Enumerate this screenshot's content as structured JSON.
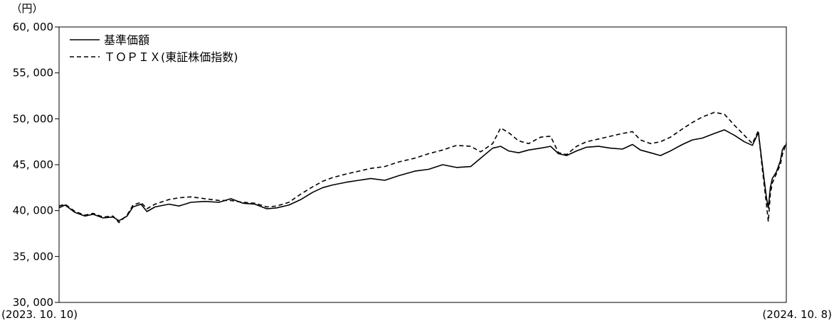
{
  "chart_data": {
    "type": "line",
    "unit_label": "（円）",
    "ylim": [
      30000,
      60000
    ],
    "y_ticks": [
      60000,
      55000,
      50000,
      45000,
      40000,
      35000,
      30000
    ],
    "y_tick_labels": [
      "60, 000",
      "55, 000",
      "50, 000",
      "45, 000",
      "40, 000",
      "35, 000",
      "30, 000"
    ],
    "x_start_label": "(2023. 10. 10)",
    "x_end_label": "(2024. 10. 8)",
    "x_range": [
      "2023-10-10",
      "2024-10-08"
    ],
    "grid": false,
    "legend_position": "top-left",
    "series": [
      {
        "name": "基準価額",
        "style": "solid",
        "color": "#000000",
        "points": [
          [
            "2023-10-10",
            40300
          ],
          [
            "2023-10-13",
            40600
          ],
          [
            "2023-10-18",
            39800
          ],
          [
            "2023-10-23",
            39400
          ],
          [
            "2023-10-27",
            39600
          ],
          [
            "2023-11-01",
            39200
          ],
          [
            "2023-11-06",
            39300
          ],
          [
            "2023-11-09",
            38900
          ],
          [
            "2023-11-13",
            39400
          ],
          [
            "2023-11-16",
            40400
          ],
          [
            "2023-11-20",
            40700
          ],
          [
            "2023-11-23",
            39900
          ],
          [
            "2023-11-27",
            40400
          ],
          [
            "2023-12-04",
            40700
          ],
          [
            "2023-12-09",
            40500
          ],
          [
            "2023-12-15",
            40900
          ],
          [
            "2023-12-22",
            41000
          ],
          [
            "2023-12-29",
            40900
          ],
          [
            "2024-01-04",
            41300
          ],
          [
            "2024-01-10",
            40800
          ],
          [
            "2024-01-16",
            40700
          ],
          [
            "2024-01-22",
            40200
          ],
          [
            "2024-01-27",
            40300
          ],
          [
            "2024-02-02",
            40600
          ],
          [
            "2024-02-08",
            41200
          ],
          [
            "2024-02-14",
            42000
          ],
          [
            "2024-02-19",
            42500
          ],
          [
            "2024-02-24",
            42800
          ],
          [
            "2024-03-02",
            43100
          ],
          [
            "2024-03-08",
            43300
          ],
          [
            "2024-03-14",
            43500
          ],
          [
            "2024-03-21",
            43300
          ],
          [
            "2024-03-28",
            43800
          ],
          [
            "2024-04-05",
            44300
          ],
          [
            "2024-04-12",
            44500
          ],
          [
            "2024-04-19",
            45000
          ],
          [
            "2024-04-26",
            44700
          ],
          [
            "2024-05-03",
            44800
          ],
          [
            "2024-05-08",
            45700
          ],
          [
            "2024-05-14",
            46800
          ],
          [
            "2024-05-18",
            47000
          ],
          [
            "2024-05-22",
            46500
          ],
          [
            "2024-05-27",
            46300
          ],
          [
            "2024-06-01",
            46600
          ],
          [
            "2024-06-07",
            46800
          ],
          [
            "2024-06-12",
            47000
          ],
          [
            "2024-06-16",
            46200
          ],
          [
            "2024-06-20",
            46000
          ],
          [
            "2024-06-25",
            46500
          ],
          [
            "2024-06-30",
            46900
          ],
          [
            "2024-07-06",
            47000
          ],
          [
            "2024-07-12",
            46800
          ],
          [
            "2024-07-18",
            46700
          ],
          [
            "2024-07-23",
            47200
          ],
          [
            "2024-07-27",
            46600
          ],
          [
            "2024-08-01",
            46300
          ],
          [
            "2024-08-06",
            46000
          ],
          [
            "2024-08-11",
            46500
          ],
          [
            "2024-08-17",
            47200
          ],
          [
            "2024-08-22",
            47700
          ],
          [
            "2024-08-27",
            47900
          ],
          [
            "2024-09-02",
            48400
          ],
          [
            "2024-09-07",
            48800
          ],
          [
            "2024-09-12",
            48200
          ],
          [
            "2024-09-17",
            47500
          ],
          [
            "2024-09-21",
            47100
          ],
          [
            "2024-09-24",
            48500
          ],
          [
            "2024-09-26",
            45000
          ],
          [
            "2024-09-28",
            41500
          ],
          [
            "2024-09-29",
            40300
          ],
          [
            "2024-09-30",
            42500
          ],
          [
            "2024-10-01",
            43500
          ],
          [
            "2024-10-03",
            44200
          ],
          [
            "2024-10-05",
            45400
          ],
          [
            "2024-10-06",
            46600
          ],
          [
            "2024-10-07",
            47000
          ],
          [
            "2024-10-08",
            47200
          ]
        ]
      },
      {
        "name": "ＴＯＰＩＸ(東証株価指数)",
        "style": "dashed",
        "color": "#000000",
        "points": [
          [
            "2023-10-10",
            40500
          ],
          [
            "2023-10-13",
            40700
          ],
          [
            "2023-10-18",
            39900
          ],
          [
            "2023-10-23",
            39500
          ],
          [
            "2023-10-27",
            39700
          ],
          [
            "2023-11-01",
            39300
          ],
          [
            "2023-11-06",
            39400
          ],
          [
            "2023-11-09",
            38700
          ],
          [
            "2023-11-13",
            39500
          ],
          [
            "2023-11-16",
            40600
          ],
          [
            "2023-11-20",
            40900
          ],
          [
            "2023-11-23",
            40200
          ],
          [
            "2023-11-27",
            40700
          ],
          [
            "2023-12-04",
            41200
          ],
          [
            "2023-12-09",
            41400
          ],
          [
            "2023-12-15",
            41500
          ],
          [
            "2023-12-22",
            41300
          ],
          [
            "2023-12-29",
            41100
          ],
          [
            "2024-01-04",
            41100
          ],
          [
            "2024-01-10",
            40900
          ],
          [
            "2024-01-16",
            40800
          ],
          [
            "2024-01-22",
            40400
          ],
          [
            "2024-01-27",
            40500
          ],
          [
            "2024-02-02",
            40900
          ],
          [
            "2024-02-08",
            41800
          ],
          [
            "2024-02-14",
            42600
          ],
          [
            "2024-02-19",
            43200
          ],
          [
            "2024-02-24",
            43600
          ],
          [
            "2024-03-02",
            44000
          ],
          [
            "2024-03-08",
            44300
          ],
          [
            "2024-03-14",
            44600
          ],
          [
            "2024-03-21",
            44800
          ],
          [
            "2024-03-28",
            45300
          ],
          [
            "2024-04-05",
            45700
          ],
          [
            "2024-04-12",
            46200
          ],
          [
            "2024-04-19",
            46600
          ],
          [
            "2024-04-26",
            47100
          ],
          [
            "2024-05-03",
            47000
          ],
          [
            "2024-05-08",
            46400
          ],
          [
            "2024-05-14",
            47300
          ],
          [
            "2024-05-18",
            49000
          ],
          [
            "2024-05-22",
            48500
          ],
          [
            "2024-05-27",
            47600
          ],
          [
            "2024-06-01",
            47300
          ],
          [
            "2024-06-07",
            48000
          ],
          [
            "2024-06-12",
            48100
          ],
          [
            "2024-06-16",
            46300
          ],
          [
            "2024-06-20",
            46100
          ],
          [
            "2024-06-25",
            47000
          ],
          [
            "2024-06-30",
            47500
          ],
          [
            "2024-07-06",
            47800
          ],
          [
            "2024-07-12",
            48100
          ],
          [
            "2024-07-18",
            48400
          ],
          [
            "2024-07-23",
            48600
          ],
          [
            "2024-07-27",
            47700
          ],
          [
            "2024-08-01",
            47300
          ],
          [
            "2024-08-06",
            47500
          ],
          [
            "2024-08-11",
            48000
          ],
          [
            "2024-08-17",
            48900
          ],
          [
            "2024-08-22",
            49600
          ],
          [
            "2024-08-27",
            50200
          ],
          [
            "2024-09-02",
            50700
          ],
          [
            "2024-09-07",
            50500
          ],
          [
            "2024-09-12",
            49300
          ],
          [
            "2024-09-17",
            48200
          ],
          [
            "2024-09-21",
            47300
          ],
          [
            "2024-09-24",
            48700
          ],
          [
            "2024-09-26",
            44500
          ],
          [
            "2024-09-28",
            40800
          ],
          [
            "2024-09-29",
            38800
          ],
          [
            "2024-09-30",
            41800
          ],
          [
            "2024-10-01",
            43000
          ],
          [
            "2024-10-03",
            44000
          ],
          [
            "2024-10-05",
            45000
          ],
          [
            "2024-10-06",
            46100
          ],
          [
            "2024-10-07",
            46700
          ],
          [
            "2024-10-08",
            47400
          ]
        ]
      }
    ]
  }
}
